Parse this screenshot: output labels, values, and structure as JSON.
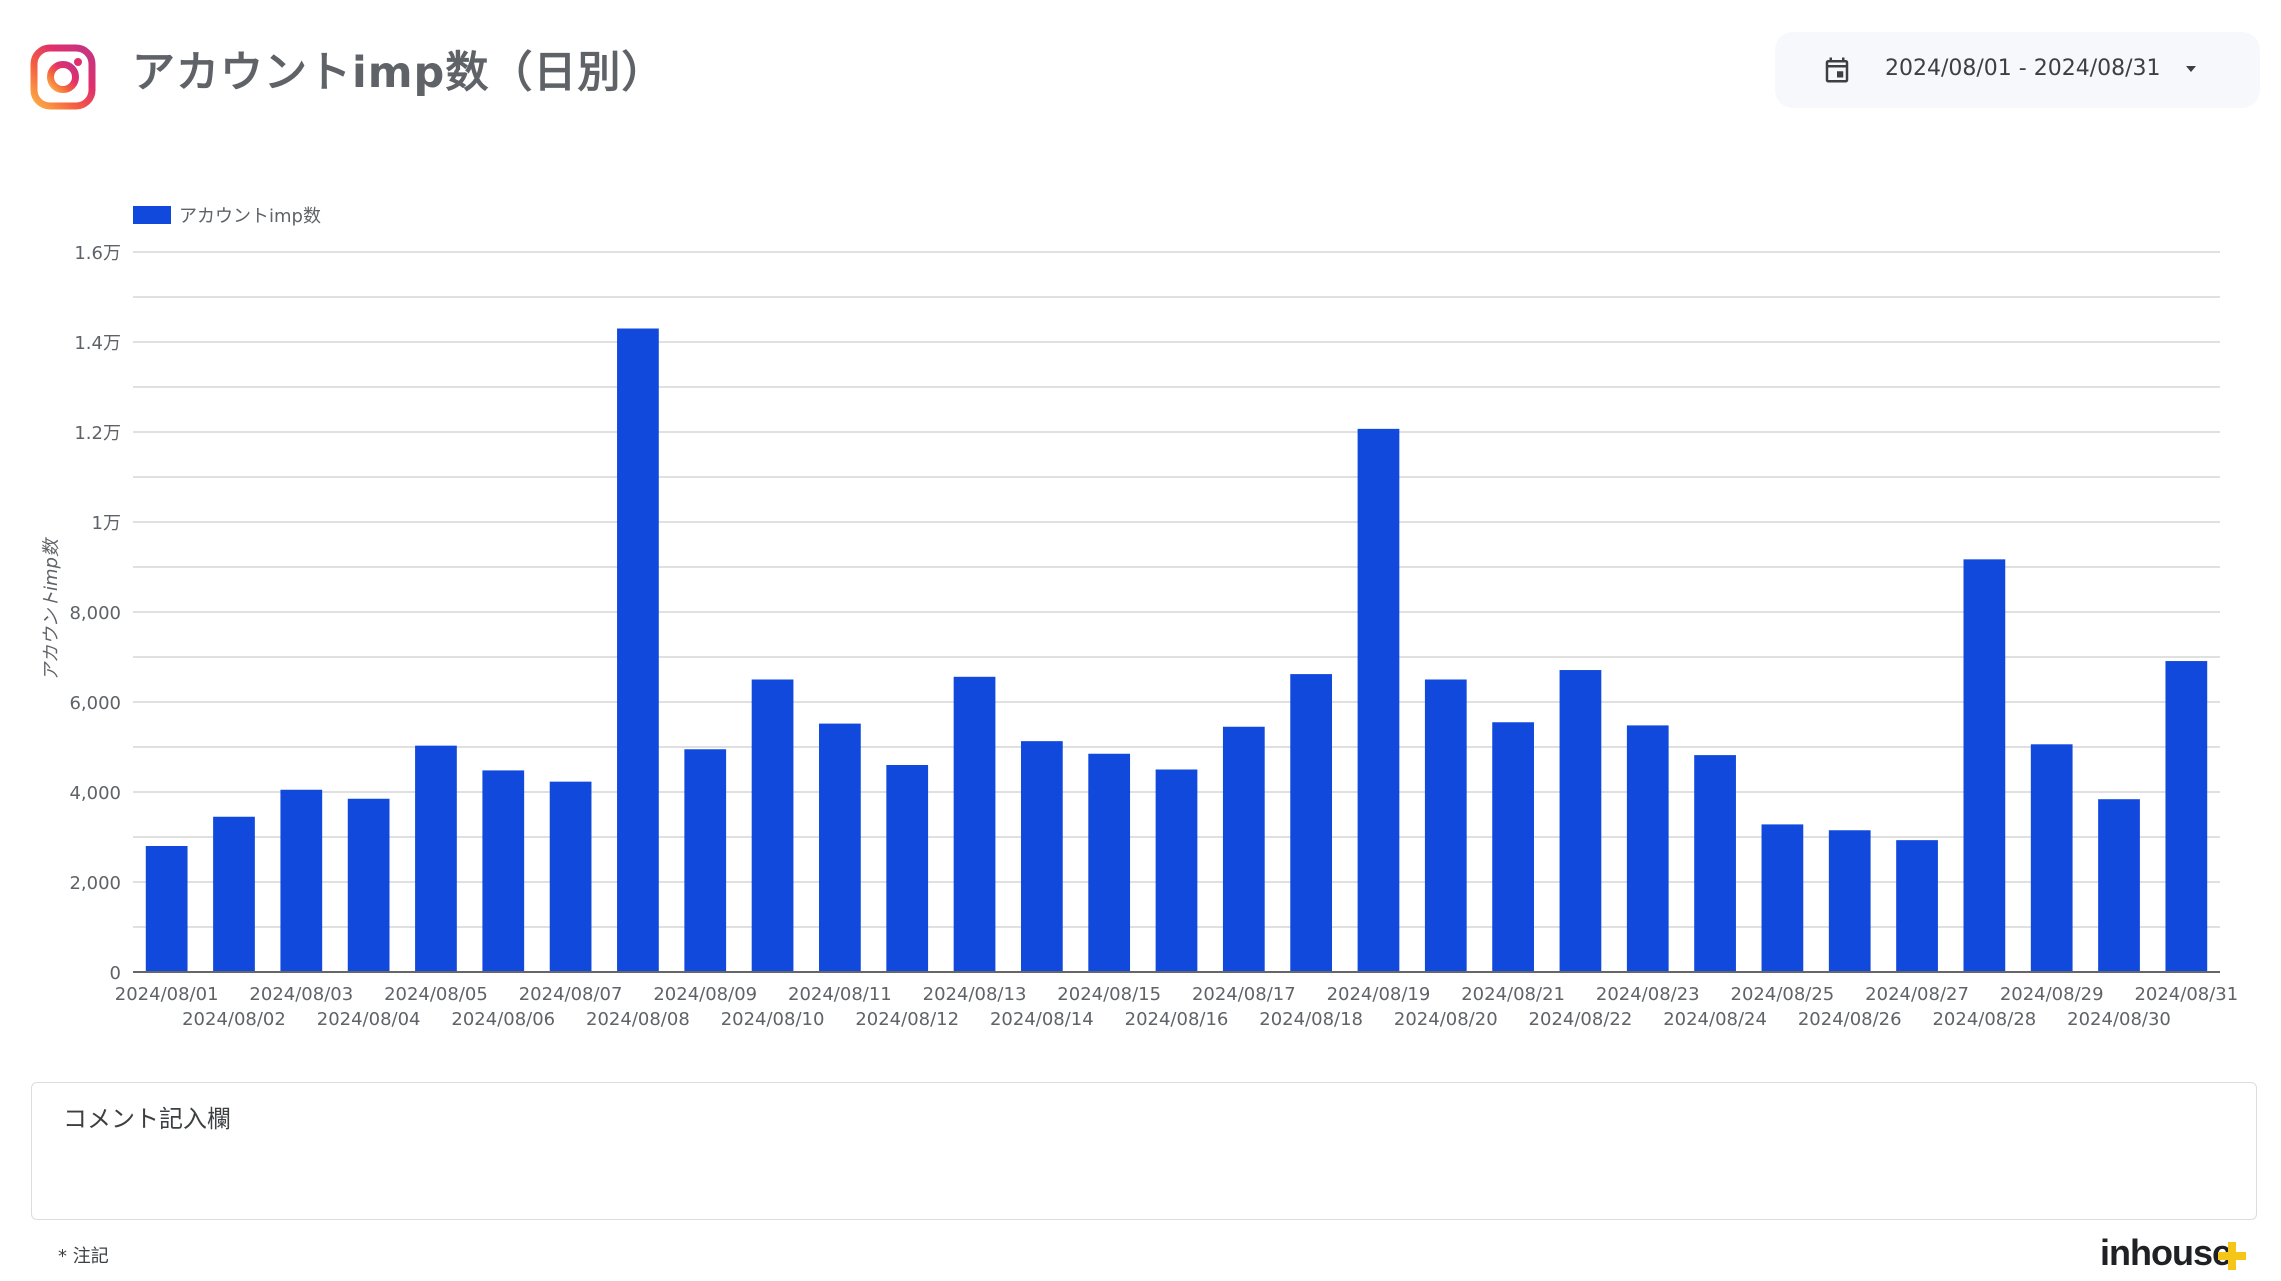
{
  "header": {
    "title": "アカウントimp数（日別）",
    "logo_icon": "instagram-logo-icon",
    "date_range": "2024/08/01 - 2024/08/31",
    "calendar_icon": "calendar-icon",
    "dropdown_icon": "caret-down-icon"
  },
  "colors": {
    "bar": "#1249dd",
    "grid": "#d5d5d5",
    "axis": "#666666",
    "text": "#5f6368",
    "accent_plus": "#f5c518"
  },
  "chart_data": {
    "type": "bar",
    "legend": "アカウントimp数",
    "legend_position": "top-left",
    "ylabel": "アカウントimp数",
    "xlabel": "",
    "ylim": [
      0,
      16000
    ],
    "yticks": [
      {
        "value": 0,
        "label": "0"
      },
      {
        "value": 2000,
        "label": "2,000"
      },
      {
        "value": 4000,
        "label": "4,000"
      },
      {
        "value": 6000,
        "label": "6,000"
      },
      {
        "value": 8000,
        "label": "8,000"
      },
      {
        "value": 10000,
        "label": "1万"
      },
      {
        "value": 12000,
        "label": "1.2万"
      },
      {
        "value": 14000,
        "label": "1.4万"
      },
      {
        "value": 16000,
        "label": "1.6万"
      }
    ],
    "grid": true,
    "categories": [
      "2024/08/01",
      "2024/08/02",
      "2024/08/03",
      "2024/08/04",
      "2024/08/05",
      "2024/08/06",
      "2024/08/07",
      "2024/08/08",
      "2024/08/09",
      "2024/08/10",
      "2024/08/11",
      "2024/08/12",
      "2024/08/13",
      "2024/08/14",
      "2024/08/15",
      "2024/08/16",
      "2024/08/17",
      "2024/08/18",
      "2024/08/19",
      "2024/08/20",
      "2024/08/21",
      "2024/08/22",
      "2024/08/23",
      "2024/08/24",
      "2024/08/25",
      "2024/08/26",
      "2024/08/27",
      "2024/08/28",
      "2024/08/29",
      "2024/08/30",
      "2024/08/31"
    ],
    "values": [
      2800,
      3450,
      4050,
      3850,
      5030,
      4480,
      4230,
      14300,
      4950,
      6500,
      5520,
      4600,
      6560,
      5130,
      4850,
      4500,
      5450,
      6620,
      12070,
      6500,
      5550,
      6710,
      5480,
      4820,
      3280,
      3150,
      2930,
      9170,
      5060,
      3840,
      6910
    ]
  },
  "comment": {
    "label": "コメント記入欄"
  },
  "footer": {
    "note": "* 注記",
    "brand": "inhouse",
    "brand_icon": "plus-icon"
  }
}
